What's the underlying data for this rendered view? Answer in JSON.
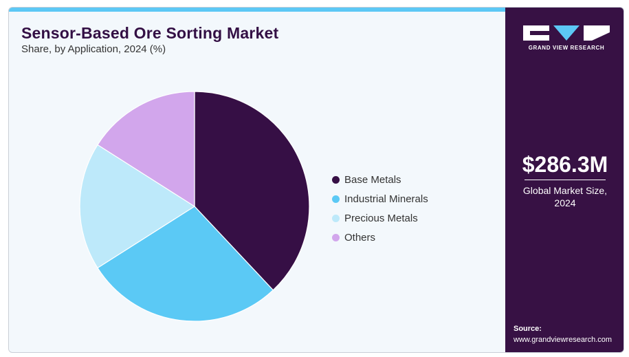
{
  "header": {
    "title": "Sensor-Based Ore Sorting Market",
    "subtitle": "Share, by Application, 2024 (%)"
  },
  "colors": {
    "accent_bar": "#5cc8f5",
    "sidebar": "#371144",
    "title": "#330f44"
  },
  "chart_data": {
    "type": "pie",
    "title": "Sensor-Based Ore Sorting Market",
    "subtitle": "Share, by Application, 2024 (%)",
    "start_angle_deg": 0,
    "direction": "clockwise",
    "legend_position": "right",
    "slices": [
      {
        "label": "Base Metals",
        "value": 38,
        "color": "#360f45"
      },
      {
        "label": "Industrial Minerals",
        "value": 28,
        "color": "#5bc9f5"
      },
      {
        "label": "Precious Metals",
        "value": 18,
        "color": "#bde9fa"
      },
      {
        "label": "Others",
        "value": 16,
        "color": "#d2a6ec"
      }
    ]
  },
  "sidebar": {
    "logo_text": "GRAND VIEW RESEARCH",
    "logo_icon": "gvr-logo-icon",
    "market_size": "$286.3M",
    "market_size_label": "Global Market Size, 2024",
    "source_label": "Source:",
    "source_url": "www.grandviewresearch.com"
  }
}
